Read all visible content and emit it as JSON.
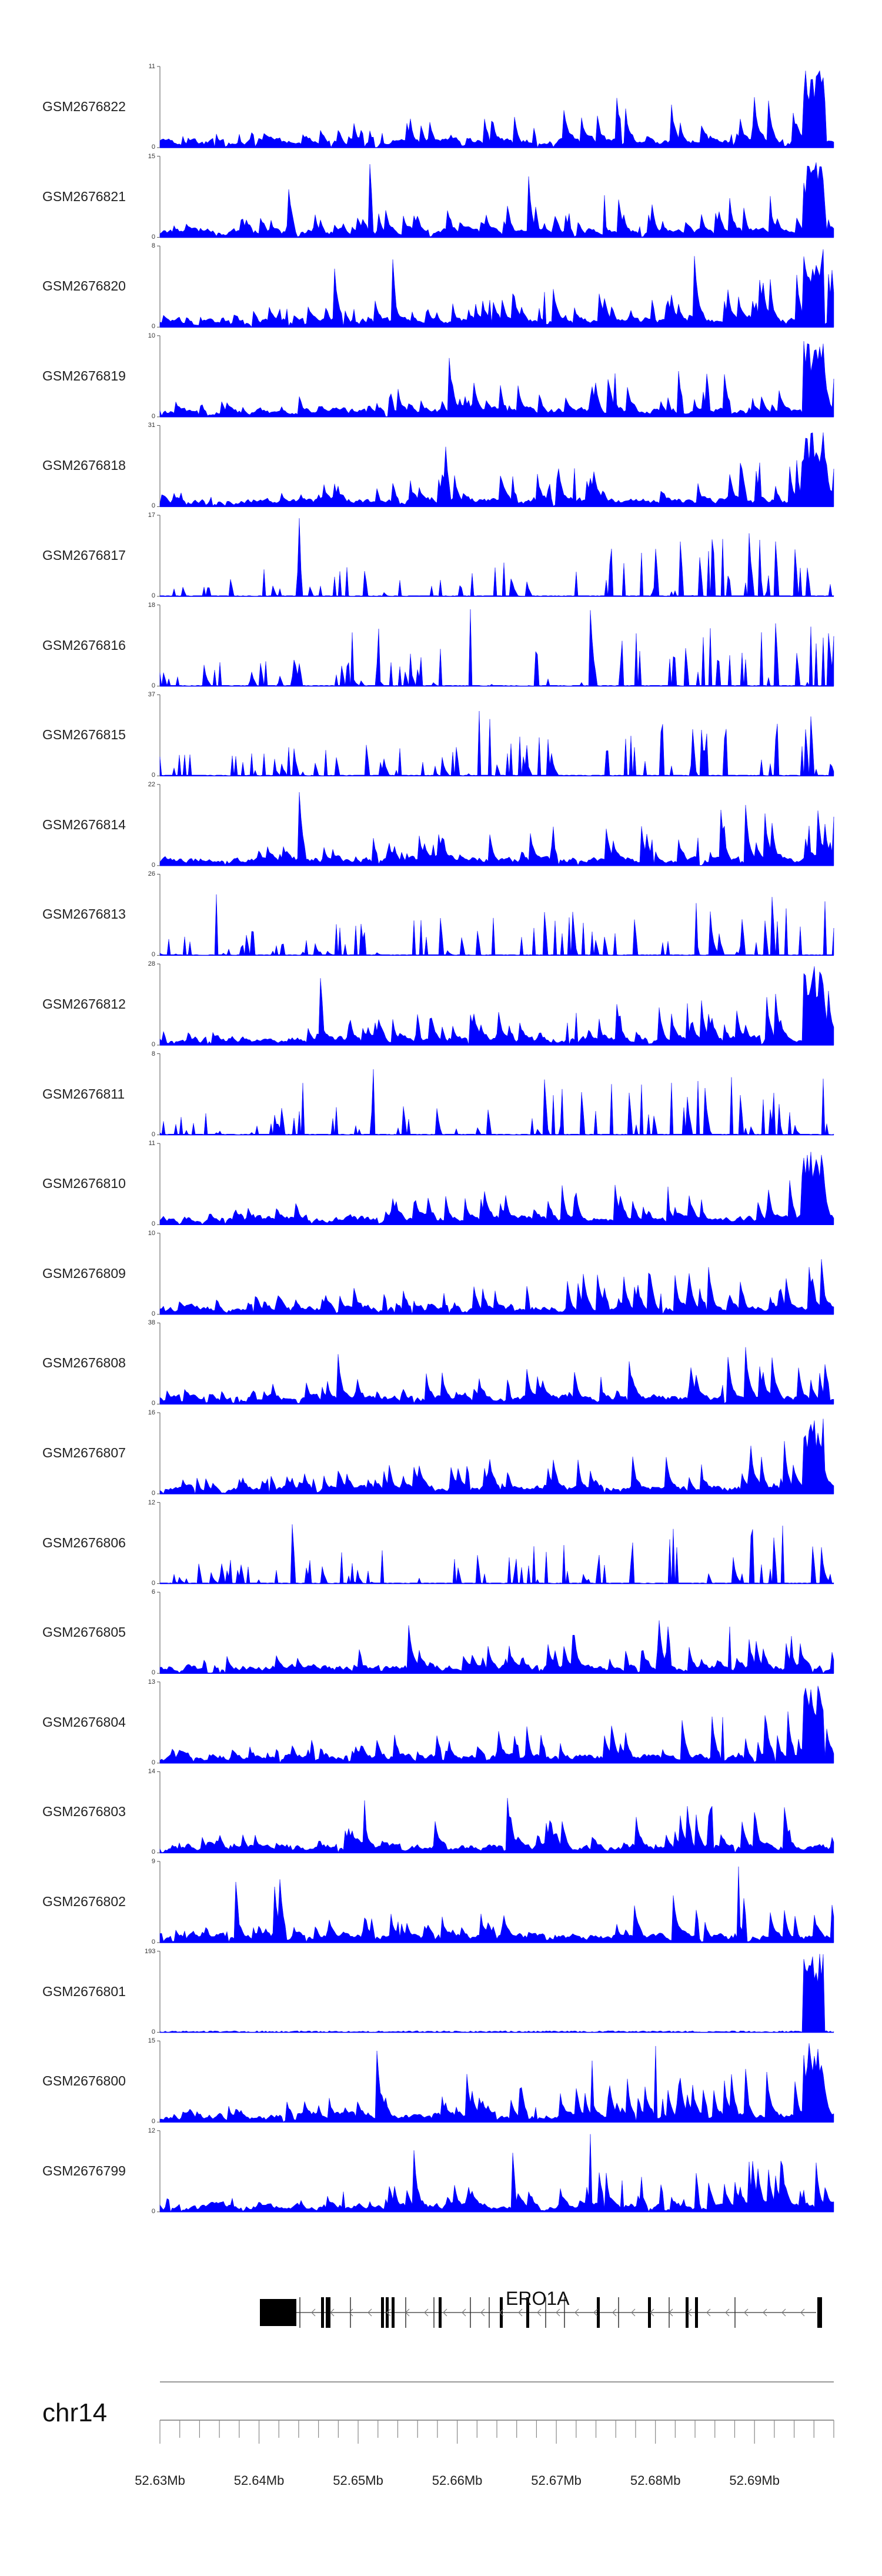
{
  "chart_data": {
    "type": "area",
    "title": "",
    "chromosome": "chr14",
    "gene": {
      "name": "ERO1A",
      "strand": "-"
    },
    "x_axis": {
      "range_mb": [
        52.63,
        52.698
      ],
      "tick_labels": [
        "52.63Mb",
        "52.64Mb",
        "52.65Mb",
        "52.66Mb",
        "52.67Mb",
        "52.68Mb",
        "52.69Mb"
      ],
      "tick_values_mb": [
        52.63,
        52.64,
        52.65,
        52.66,
        52.67,
        52.68,
        52.69
      ]
    },
    "fill_color": "#0000ff",
    "tracks": [
      {
        "name": "GSM2676822",
        "ymax": "11",
        "ymin": "0"
      },
      {
        "name": "GSM2676821",
        "ymax": "15",
        "ymin": "0"
      },
      {
        "name": "GSM2676820",
        "ymax": "8",
        "ymin": "0"
      },
      {
        "name": "GSM2676819",
        "ymax": "10",
        "ymin": "0"
      },
      {
        "name": "GSM2676818",
        "ymax": "31",
        "ymin": "0"
      },
      {
        "name": "GSM2676817",
        "ymax": "17",
        "ymin": "0"
      },
      {
        "name": "GSM2676816",
        "ymax": "18",
        "ymin": "0"
      },
      {
        "name": "GSM2676815",
        "ymax": "37",
        "ymin": "0"
      },
      {
        "name": "GSM2676814",
        "ymax": "22",
        "ymin": "0"
      },
      {
        "name": "GSM2676813",
        "ymax": "26",
        "ymin": "0"
      },
      {
        "name": "GSM2676812",
        "ymax": "28",
        "ymin": "0"
      },
      {
        "name": "GSM2676811",
        "ymax": "8",
        "ymin": "0"
      },
      {
        "name": "GSM2676810",
        "ymax": "11",
        "ymin": "0"
      },
      {
        "name": "GSM2676809",
        "ymax": "10",
        "ymin": "0"
      },
      {
        "name": "GSM2676808",
        "ymax": "38",
        "ymin": "0"
      },
      {
        "name": "GSM2676807",
        "ymax": "16",
        "ymin": "0"
      },
      {
        "name": "GSM2676806",
        "ymax": "12",
        "ymin": "0"
      },
      {
        "name": "GSM2676805",
        "ymax": "6",
        "ymin": "0"
      },
      {
        "name": "GSM2676804",
        "ymax": "13",
        "ymin": "0"
      },
      {
        "name": "GSM2676803",
        "ymax": "14",
        "ymin": "0"
      },
      {
        "name": "GSM2676802",
        "ymax": "9",
        "ymin": "0"
      },
      {
        "name": "GSM2676801",
        "ymax": "193",
        "ymin": "0"
      },
      {
        "name": "GSM2676800",
        "ymax": "15",
        "ymin": "0"
      },
      {
        "name": "GSM2676799",
        "ymax": "12",
        "ymin": "0"
      }
    ]
  }
}
